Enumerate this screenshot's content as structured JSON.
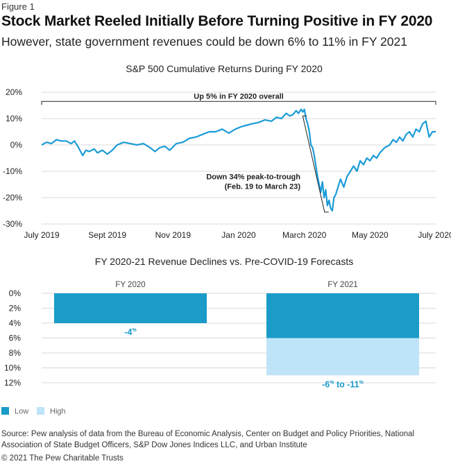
{
  "figure_label": "Figure 1",
  "headline": "Stock Market Reeled Initially Before Turning Positive in FY 2020",
  "subheadline": "However, state government revenues could be down 6% to 11% in FY 2021",
  "source": "Source: Pew analysis of data from the Bureau of Economic Analysis, Center on Budget and Policy Priorities, National Association of State Budget Officers, S&P Dow Jones Indices LLC, and Urban Institute",
  "copyright": "© 2021 The Pew Charitable Trusts",
  "colors": {
    "line": "#1a9bd7",
    "low": "#1a9bc8",
    "high": "#bfe4f7",
    "grid": "#d8d8d8",
    "annotation": "#222222",
    "label_blue": "#1a9bc8"
  },
  "chart_data": [
    {
      "type": "line",
      "title": "S&P 500 Cumulative Returns During FY 2020",
      "x_tick_labels": [
        "July 2019",
        "Sept 2019",
        "Nov 2019",
        "Jan 2020",
        "March 2020",
        "May 2020",
        "July 2020"
      ],
      "x_tick_positions": [
        0,
        2,
        4,
        6,
        8,
        10,
        12
      ],
      "y_tick_labels": [
        "20%",
        "10%",
        "0%",
        "-10%",
        "-20%",
        "-30%"
      ],
      "y_tick_values": [
        20,
        10,
        0,
        -10,
        -20,
        -30
      ],
      "ylim": [
        -30,
        20
      ],
      "xlim": [
        0,
        12
      ],
      "grid": true,
      "annotations": [
        {
          "text": "Up 5% in FY 2020 overall"
        },
        {
          "lines": [
            "Down 34% peak-to-trough",
            "(Feb. 19 to March 23)"
          ]
        }
      ],
      "series": [
        {
          "x": [
            0,
            0.15,
            0.3,
            0.45,
            0.6,
            0.75,
            0.9,
            1.0,
            1.1,
            1.25,
            1.35,
            1.45,
            1.6,
            1.7,
            1.85,
            2.0,
            2.15,
            2.3,
            2.5,
            2.7,
            2.9,
            3.1,
            3.3,
            3.45,
            3.6,
            3.75,
            3.9,
            4.1,
            4.3,
            4.5,
            4.7,
            4.9,
            5.1,
            5.3,
            5.5,
            5.7,
            5.9,
            6.1,
            6.25,
            6.4,
            6.6,
            6.8,
            7.0,
            7.15,
            7.3,
            7.45,
            7.55,
            7.65,
            7.75,
            7.82,
            7.9,
            7.95,
            8.0,
            8.05,
            8.1,
            8.15,
            8.2,
            8.25,
            8.3,
            8.35,
            8.4,
            8.45,
            8.5,
            8.55,
            8.6,
            8.65,
            8.7,
            8.75,
            8.8,
            8.85,
            8.9,
            8.95,
            9.0,
            9.1,
            9.2,
            9.3,
            9.4,
            9.5,
            9.6,
            9.7,
            9.8,
            9.9,
            10.0,
            10.1,
            10.2,
            10.3,
            10.45,
            10.6,
            10.7,
            10.8,
            10.9,
            11.0,
            11.1,
            11.2,
            11.3,
            11.4,
            11.5,
            11.6,
            11.7,
            11.8,
            11.9,
            12.0
          ],
          "y": [
            0,
            1,
            0.5,
            2,
            1.5,
            1.5,
            0.5,
            1.5,
            -0.5,
            -4,
            -2,
            -2.5,
            -1.5,
            -3,
            -2,
            -3.5,
            -2,
            0,
            1,
            0.5,
            0,
            0.5,
            -1,
            -2.5,
            -1,
            -0.5,
            -2,
            0.5,
            1,
            2.5,
            3,
            4,
            5,
            5,
            6,
            4.5,
            6,
            7,
            7.5,
            8,
            8.5,
            9.5,
            9,
            10.5,
            10,
            12,
            11,
            11.5,
            13,
            12,
            13.5,
            12.5,
            13.5,
            10,
            8,
            5,
            0,
            -1,
            -4,
            -8,
            -12,
            -15,
            -18,
            -14,
            -20,
            -17,
            -23,
            -21,
            -24,
            -25,
            -20,
            -19,
            -17,
            -13,
            -16,
            -12,
            -10,
            -8,
            -10,
            -6,
            -7.5,
            -5,
            -6,
            -4,
            -5,
            -3,
            -1,
            0,
            2,
            1,
            3,
            1.5,
            4,
            5,
            3,
            6,
            5,
            8,
            9,
            3,
            5,
            5
          ]
        }
      ]
    },
    {
      "type": "bar",
      "title": "FY 2020-21 Revenue Declines vs. Pre-COVID-19 Forecasts",
      "categories": [
        "FY 2020",
        "FY 2021"
      ],
      "series": [
        {
          "name": "Low",
          "values": [
            4,
            6
          ]
        },
        {
          "name": "High",
          "values": [
            4,
            11
          ]
        }
      ],
      "y_tick_labels": [
        "0%",
        "2%",
        "4%",
        "6%",
        "8%",
        "10%",
        "12%"
      ],
      "y_tick_values": [
        0,
        2,
        4,
        6,
        8,
        10,
        12
      ],
      "ylim": [
        0,
        12
      ],
      "inverted": true,
      "grid": true,
      "data_labels": [
        {
          "main": "-4",
          "unit": "%"
        },
        {
          "part1": "-6",
          "unit1": "%",
          "mid": " to ",
          "part2": "-11",
          "unit2": "%"
        }
      ],
      "legend": {
        "position": "bottom-left",
        "labels": [
          "Low",
          "High"
        ]
      }
    }
  ]
}
